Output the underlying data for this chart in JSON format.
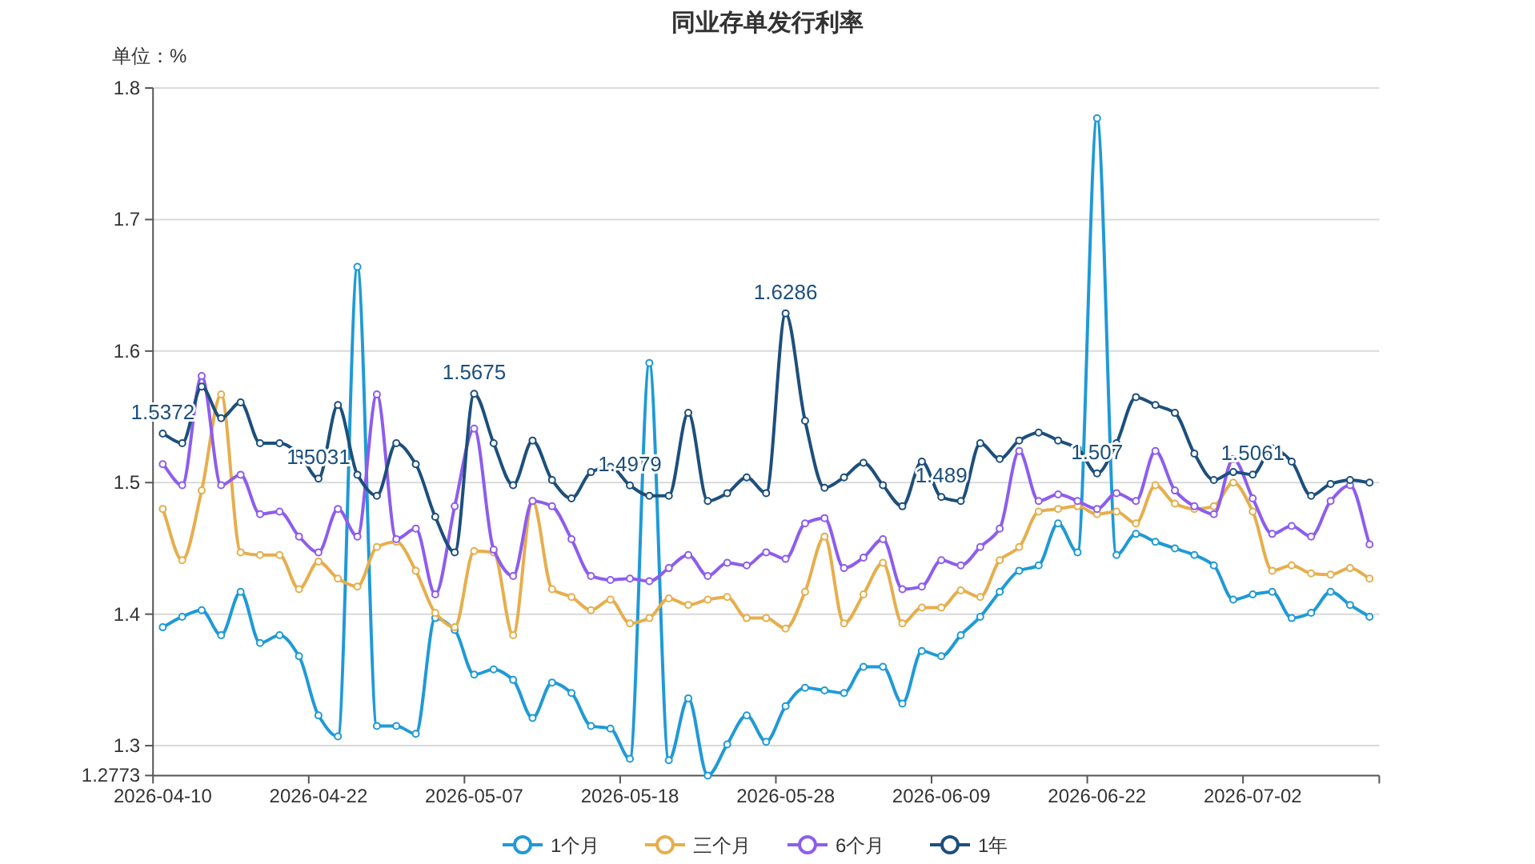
{
  "chart_data": {
    "type": "line",
    "title": "同业存单发行利率",
    "ylabel": "单位：%",
    "categories": [
      "2026-04-10",
      null,
      null,
      null,
      null,
      null,
      null,
      null,
      "2026-04-22",
      null,
      null,
      null,
      null,
      null,
      null,
      null,
      "2026-05-07",
      null,
      null,
      null,
      null,
      null,
      null,
      null,
      "2026-05-18",
      null,
      null,
      null,
      null,
      null,
      null,
      null,
      "2026-05-28",
      null,
      null,
      null,
      null,
      null,
      null,
      null,
      "2026-06-09",
      null,
      null,
      null,
      null,
      null,
      null,
      null,
      "2026-06-22",
      null,
      null,
      null,
      null,
      null,
      null,
      null,
      "2026-07-02",
      null,
      null,
      null,
      null,
      null,
      null
    ],
    "ylim": [
      1.2773,
      1.8
    ],
    "yticks": [
      1.2773,
      1.3,
      1.4,
      1.5,
      1.6,
      1.7,
      1.8
    ],
    "grid": "y",
    "legend": "bottom",
    "marker": "circle",
    "series": [
      {
        "name": "1个月",
        "color": "#1f9ad6",
        "values": [
          1.39,
          1.398,
          1.403,
          1.384,
          1.417,
          1.378,
          1.384,
          1.368,
          1.323,
          1.307,
          1.664,
          1.315,
          1.315,
          1.309,
          1.397,
          1.388,
          1.354,
          1.358,
          1.35,
          1.321,
          1.348,
          1.34,
          1.315,
          1.313,
          1.29,
          1.591,
          1.289,
          1.336,
          1.2773,
          1.301,
          1.323,
          1.303,
          1.33,
          1.344,
          1.342,
          1.34,
          1.36,
          1.36,
          1.332,
          1.372,
          1.368,
          1.384,
          1.398,
          1.417,
          1.433,
          1.437,
          1.469,
          1.447,
          1.777,
          1.445,
          1.461,
          1.455,
          1.45,
          1.445,
          1.437,
          1.411,
          1.415,
          1.417,
          1.397,
          1.401,
          1.417,
          1.407,
          1.398
        ]
      },
      {
        "name": "三个月",
        "color": "#e6ae4c",
        "values": [
          1.48,
          1.441,
          1.494,
          1.567,
          1.447,
          1.445,
          1.445,
          1.419,
          1.44,
          1.427,
          1.421,
          1.451,
          1.455,
          1.433,
          1.401,
          1.39,
          1.448,
          1.447,
          1.384,
          1.486,
          1.419,
          1.413,
          1.403,
          1.411,
          1.393,
          1.397,
          1.412,
          1.407,
          1.411,
          1.413,
          1.397,
          1.397,
          1.389,
          1.417,
          1.459,
          1.393,
          1.415,
          1.439,
          1.393,
          1.405,
          1.405,
          1.418,
          1.413,
          1.441,
          1.451,
          1.478,
          1.48,
          1.482,
          1.476,
          1.478,
          1.469,
          1.498,
          1.484,
          1.48,
          1.482,
          1.5,
          1.478,
          1.433,
          1.437,
          1.431,
          1.43,
          1.435,
          1.427
        ]
      },
      {
        "name": "6个月",
        "color": "#8d5ded",
        "values": [
          1.514,
          1.498,
          1.581,
          1.498,
          1.506,
          1.476,
          1.478,
          1.459,
          1.447,
          1.48,
          1.459,
          1.567,
          1.457,
          1.465,
          1.415,
          1.482,
          1.541,
          1.449,
          1.429,
          1.486,
          1.482,
          1.457,
          1.429,
          1.426,
          1.427,
          1.425,
          1.435,
          1.445,
          1.429,
          1.439,
          1.437,
          1.447,
          1.442,
          1.469,
          1.473,
          1.435,
          1.443,
          1.457,
          1.419,
          1.421,
          1.441,
          1.437,
          1.451,
          1.465,
          1.524,
          1.486,
          1.491,
          1.486,
          1.48,
          1.492,
          1.486,
          1.524,
          1.494,
          1.482,
          1.476,
          1.518,
          1.488,
          1.461,
          1.467,
          1.459,
          1.486,
          1.498,
          1.453
        ]
      },
      {
        "name": "1年",
        "color": "#1d4f7c",
        "values": [
          1.5372,
          1.53,
          1.573,
          1.549,
          1.561,
          1.53,
          1.53,
          1.522,
          1.5031,
          1.559,
          1.506,
          1.49,
          1.53,
          1.514,
          1.474,
          1.447,
          1.5675,
          1.53,
          1.498,
          1.532,
          1.502,
          1.488,
          1.508,
          1.512,
          1.4979,
          1.49,
          1.49,
          1.553,
          1.486,
          1.492,
          1.504,
          1.492,
          1.6286,
          1.547,
          1.496,
          1.504,
          1.515,
          1.498,
          1.482,
          1.516,
          1.489,
          1.486,
          1.53,
          1.518,
          1.532,
          1.538,
          1.532,
          1.526,
          1.507,
          1.53,
          1.565,
          1.559,
          1.553,
          1.522,
          1.502,
          1.508,
          1.5061,
          1.526,
          1.516,
          1.49,
          1.499,
          1.502,
          1.5
        ],
        "value_labels": [
          "1.5372",
          null,
          null,
          null,
          null,
          null,
          null,
          null,
          "1.5031",
          null,
          null,
          null,
          null,
          null,
          null,
          null,
          "1.5675",
          null,
          null,
          null,
          null,
          null,
          null,
          null,
          "1.4979",
          null,
          null,
          null,
          null,
          null,
          null,
          null,
          "1.6286",
          null,
          null,
          null,
          null,
          null,
          null,
          null,
          "1.489",
          null,
          null,
          null,
          null,
          null,
          null,
          null,
          "1.507",
          null,
          null,
          null,
          null,
          null,
          null,
          null,
          "1.5061",
          null,
          null,
          null,
          null,
          null,
          null
        ]
      }
    ]
  }
}
